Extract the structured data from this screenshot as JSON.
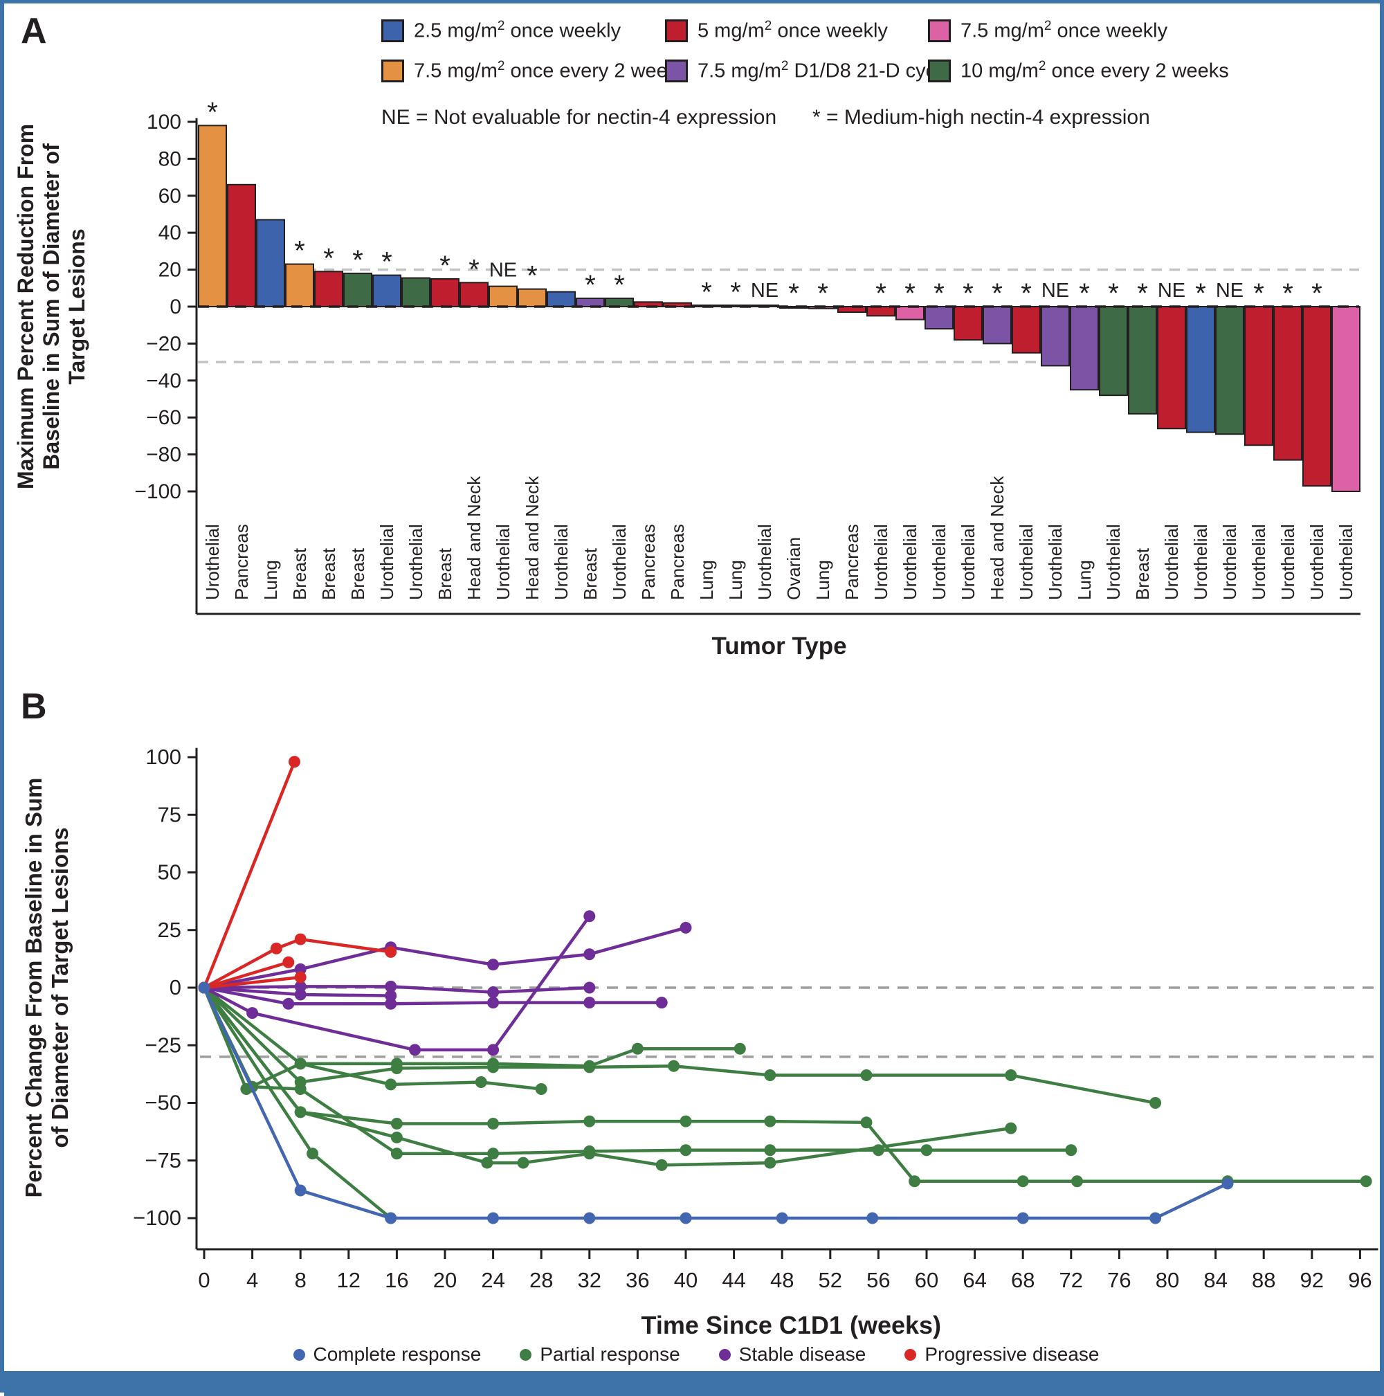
{
  "figure": {
    "panel_a_label": "A",
    "panel_b_label": "B",
    "frame_color": "#3C73A9"
  },
  "annotations": {
    "ne": "NE = Not evaluable for nectin-4 expression",
    "star": "* = Medium-high nectin-4 expression"
  },
  "legend_a": {
    "items": [
      {
        "pre": "2.5 mg/m",
        "sup": "2",
        "post": " once weekly",
        "color": "#3E63AD"
      },
      {
        "pre": "5 mg/m",
        "sup": "2",
        "post": " once weekly",
        "color": "#BE1E2D"
      },
      {
        "pre": "7.5 mg/m",
        "sup": "2",
        "post": " once weekly",
        "color": "#DD61A5"
      },
      {
        "pre": "7.5 mg/m",
        "sup": "2",
        "post": " once every 2 weeks",
        "color": "#E59144"
      },
      {
        "pre": "7.5 mg/m",
        "sup": "2",
        "post": " D1/D8 21-D cycle",
        "color": "#7C54A5"
      },
      {
        "pre": "10 mg/m",
        "sup": "2",
        "post": " once every 2 weeks",
        "color": "#3E6B46"
      }
    ]
  },
  "legend_b": {
    "items": [
      {
        "label": "Complete response",
        "color": "#4366B0"
      },
      {
        "label": "Partial response",
        "color": "#3E7E42"
      },
      {
        "label": "Stable disease",
        "color": "#6F2D97"
      },
      {
        "label": "Progressive disease",
        "color": "#D92726"
      }
    ]
  },
  "chart_data": [
    {
      "type": "bar",
      "panel": "A",
      "ylabel_lines": [
        "Maximum Percent Reduction From",
        "Baseline in Sum of Diameter of",
        "Target Lesions"
      ],
      "xlabel": "Tumor Type",
      "ylim": [
        -100,
        100
      ],
      "yticks": [
        100,
        80,
        60,
        40,
        20,
        0,
        -20,
        -40,
        -60,
        -80,
        -100
      ],
      "ref_lines": [
        {
          "y": 20,
          "color": "#C3C3C3"
        },
        {
          "y": 0,
          "color": "#231F20"
        },
        {
          "y": -30,
          "color": "#C3C3C3"
        }
      ],
      "bars": [
        {
          "tumor": "Urothelial",
          "value": 98,
          "group": 3,
          "marker": "*"
        },
        {
          "tumor": "Pancreas",
          "value": 66,
          "group": 1,
          "marker": ""
        },
        {
          "tumor": "Lung",
          "value": 47,
          "group": 0,
          "marker": ""
        },
        {
          "tumor": "Breast",
          "value": 23,
          "group": 3,
          "marker": "*"
        },
        {
          "tumor": "Breast",
          "value": 19,
          "group": 1,
          "marker": "*"
        },
        {
          "tumor": "Breast",
          "value": 18,
          "group": 5,
          "marker": "*"
        },
        {
          "tumor": "Urothelial",
          "value": 17,
          "group": 0,
          "marker": "*"
        },
        {
          "tumor": "Urothelial",
          "value": 15.5,
          "group": 5,
          "marker": ""
        },
        {
          "tumor": "Breast",
          "value": 15,
          "group": 1,
          "marker": "*"
        },
        {
          "tumor": "Head and Neck",
          "value": 13,
          "group": 1,
          "marker": "*"
        },
        {
          "tumor": "Urothelial",
          "value": 11,
          "group": 3,
          "marker": "NE"
        },
        {
          "tumor": "Head and Neck",
          "value": 9.5,
          "group": 3,
          "marker": "*"
        },
        {
          "tumor": "Urothelial",
          "value": 8,
          "group": 0,
          "marker": ""
        },
        {
          "tumor": "Breast",
          "value": 4.5,
          "group": 4,
          "marker": "*"
        },
        {
          "tumor": "Urothelial",
          "value": 4.5,
          "group": 5,
          "marker": "*"
        },
        {
          "tumor": "Pancreas",
          "value": 2.5,
          "group": 1,
          "marker": ""
        },
        {
          "tumor": "Pancreas",
          "value": 2,
          "group": 1,
          "marker": ""
        },
        {
          "tumor": "Lung",
          "value": 0.5,
          "group": 0,
          "marker": "*"
        },
        {
          "tumor": "Lung",
          "value": 0.5,
          "group": 0,
          "marker": "*"
        },
        {
          "tumor": "Urothelial",
          "value": 0,
          "group": 0,
          "marker": "NE"
        },
        {
          "tumor": "Ovarian",
          "value": -0.5,
          "group": 1,
          "marker": "*"
        },
        {
          "tumor": "Lung",
          "value": -1,
          "group": 2,
          "marker": "*"
        },
        {
          "tumor": "Pancreas",
          "value": -3,
          "group": 1,
          "marker": ""
        },
        {
          "tumor": "Urothelial",
          "value": -5,
          "group": 1,
          "marker": "*"
        },
        {
          "tumor": "Urothelial",
          "value": -7,
          "group": 2,
          "marker": "*"
        },
        {
          "tumor": "Urothelial",
          "value": -12,
          "group": 4,
          "marker": "*"
        },
        {
          "tumor": "Urothelial",
          "value": -18,
          "group": 1,
          "marker": "*"
        },
        {
          "tumor": "Head and Neck",
          "value": -20,
          "group": 4,
          "marker": "*"
        },
        {
          "tumor": "Urothelial",
          "value": -25,
          "group": 1,
          "marker": "*"
        },
        {
          "tumor": "Urothelial",
          "value": -32,
          "group": 4,
          "marker": "NE"
        },
        {
          "tumor": "Lung",
          "value": -45,
          "group": 4,
          "marker": "*"
        },
        {
          "tumor": "Urothelial",
          "value": -48,
          "group": 5,
          "marker": "*"
        },
        {
          "tumor": "Breast",
          "value": -58,
          "group": 5,
          "marker": "*"
        },
        {
          "tumor": "Urothelial",
          "value": -66,
          "group": 1,
          "marker": "NE"
        },
        {
          "tumor": "Urothelial",
          "value": -68,
          "group": 0,
          "marker": "*"
        },
        {
          "tumor": "Urothelial",
          "value": -69,
          "group": 5,
          "marker": "NE"
        },
        {
          "tumor": "Urothelial",
          "value": -75,
          "group": 1,
          "marker": "*"
        },
        {
          "tumor": "Urothelial",
          "value": -83,
          "group": 1,
          "marker": "*"
        },
        {
          "tumor": "Urothelial",
          "value": -97,
          "group": 1,
          "marker": "*"
        },
        {
          "tumor": "Urothelial",
          "value": -100,
          "group": 2,
          "marker": ""
        }
      ]
    },
    {
      "type": "line",
      "panel": "B",
      "ylabel_lines": [
        "Percent Change From Baseline in Sum",
        "of Diameter of Target Lesions"
      ],
      "xlabel": "Time Since C1D1 (weeks)",
      "xlim": [
        0,
        97.5
      ],
      "xticks": [
        0,
        4,
        8,
        12,
        16,
        20,
        24,
        28,
        32,
        36,
        40,
        44,
        48,
        52,
        56,
        60,
        64,
        68,
        72,
        76,
        80,
        84,
        88,
        92,
        96
      ],
      "ylim": [
        -105,
        105
      ],
      "yticks": [
        100,
        75,
        50,
        25,
        0,
        -25,
        -50,
        -75,
        -100
      ],
      "ref_lines": [
        {
          "y": 0,
          "color": "#9E9E9E"
        },
        {
          "y": -30,
          "color": "#9E9E9E"
        }
      ],
      "series": [
        {
          "name": "Partial response",
          "color": "#3E7E42",
          "lines": [
            [
              [
                0,
                0
              ],
              [
                3.5,
                -44
              ],
              [
                8,
                -33
              ],
              [
                16,
                -33
              ],
              [
                24,
                -33
              ],
              [
                32,
                -34
              ],
              [
                36,
                -26.5
              ],
              [
                44.5,
                -26.5
              ]
            ],
            [
              [
                0,
                0
              ],
              [
                8,
                -41
              ],
              [
                16,
                -35
              ],
              [
                24,
                -34.5
              ],
              [
                32,
                -34.5
              ],
              [
                39,
                -34
              ],
              [
                47,
                -38
              ],
              [
                55,
                -38
              ],
              [
                67,
                -38
              ],
              [
                79,
                -50
              ]
            ],
            [
              [
                0,
                0
              ],
              [
                9,
                -72
              ],
              [
                15.5,
                -100
              ]
            ],
            [
              [
                0,
                0
              ],
              [
                8,
                -54
              ],
              [
                16,
                -65
              ],
              [
                23.5,
                -76
              ],
              [
                26.5,
                -76
              ],
              [
                32,
                -72
              ],
              [
                38,
                -77
              ],
              [
                47,
                -76
              ],
              [
                67,
                -61
              ]
            ],
            [
              [
                0,
                0
              ],
              [
                8,
                -54
              ],
              [
                16,
                -59
              ],
              [
                24,
                -59
              ],
              [
                32,
                -58
              ],
              [
                40,
                -58
              ],
              [
                47,
                -58
              ],
              [
                55,
                -58.5
              ],
              [
                59,
                -84
              ],
              [
                68,
                -84
              ],
              [
                72.5,
                -84
              ],
              [
                85,
                -84
              ],
              [
                96.5,
                -84
              ]
            ],
            [
              [
                0,
                0
              ],
              [
                4,
                -43
              ],
              [
                8,
                -44
              ],
              [
                16,
                -72
              ],
              [
                24,
                -72
              ],
              [
                32,
                -71
              ],
              [
                40,
                -70.5
              ],
              [
                47,
                -70.5
              ],
              [
                56,
                -70.5
              ],
              [
                60,
                -70.5
              ],
              [
                72,
                -70.5
              ]
            ],
            [
              [
                0,
                0
              ],
              [
                8,
                -33
              ],
              [
                15.5,
                -42
              ],
              [
                23,
                -41
              ],
              [
                28,
                -44
              ]
            ]
          ]
        },
        {
          "name": "Stable disease",
          "color": "#6F2D97",
          "lines": [
            [
              [
                0,
                0
              ],
              [
                8,
                8
              ],
              [
                15.5,
                17.5
              ],
              [
                24,
                10
              ],
              [
                32,
                14.5
              ],
              [
                40,
                26
              ]
            ],
            [
              [
                0,
                0
              ],
              [
                8,
                0.5
              ],
              [
                15.5,
                0.5
              ],
              [
                24,
                -2
              ],
              [
                32,
                0
              ]
            ],
            [
              [
                0,
                0
              ],
              [
                7,
                -7
              ],
              [
                15.5,
                -7
              ],
              [
                24,
                -6.5
              ],
              [
                32,
                -6.5
              ],
              [
                38,
                -6.5
              ]
            ],
            [
              [
                0,
                0
              ],
              [
                8,
                -3
              ],
              [
                15.5,
                -3.5
              ]
            ],
            [
              [
                0,
                0
              ],
              [
                4,
                -11
              ],
              [
                17.5,
                -27
              ],
              [
                24,
                -27
              ],
              [
                32,
                31
              ]
            ]
          ]
        },
        {
          "name": "Progressive disease",
          "color": "#D92726",
          "lines": [
            [
              [
                0,
                0
              ],
              [
                7.5,
                98
              ]
            ],
            [
              [
                0,
                0
              ],
              [
                6,
                17
              ],
              [
                8,
                21
              ],
              [
                15.5,
                15.5
              ]
            ],
            [
              [
                0,
                0
              ],
              [
                7,
                11
              ]
            ],
            [
              [
                0,
                0
              ],
              [
                8,
                4.5
              ]
            ]
          ]
        },
        {
          "name": "Complete response",
          "color": "#4366B0",
          "lines": [
            [
              [
                0,
                0
              ],
              [
                8,
                -88
              ],
              [
                15.5,
                -100
              ],
              [
                24,
                -100
              ],
              [
                32,
                -100
              ],
              [
                40,
                -100
              ],
              [
                48,
                -100
              ],
              [
                55.5,
                -100
              ],
              [
                68,
                -100
              ],
              [
                79,
                -100
              ],
              [
                85,
                -85
              ]
            ]
          ]
        }
      ]
    }
  ]
}
